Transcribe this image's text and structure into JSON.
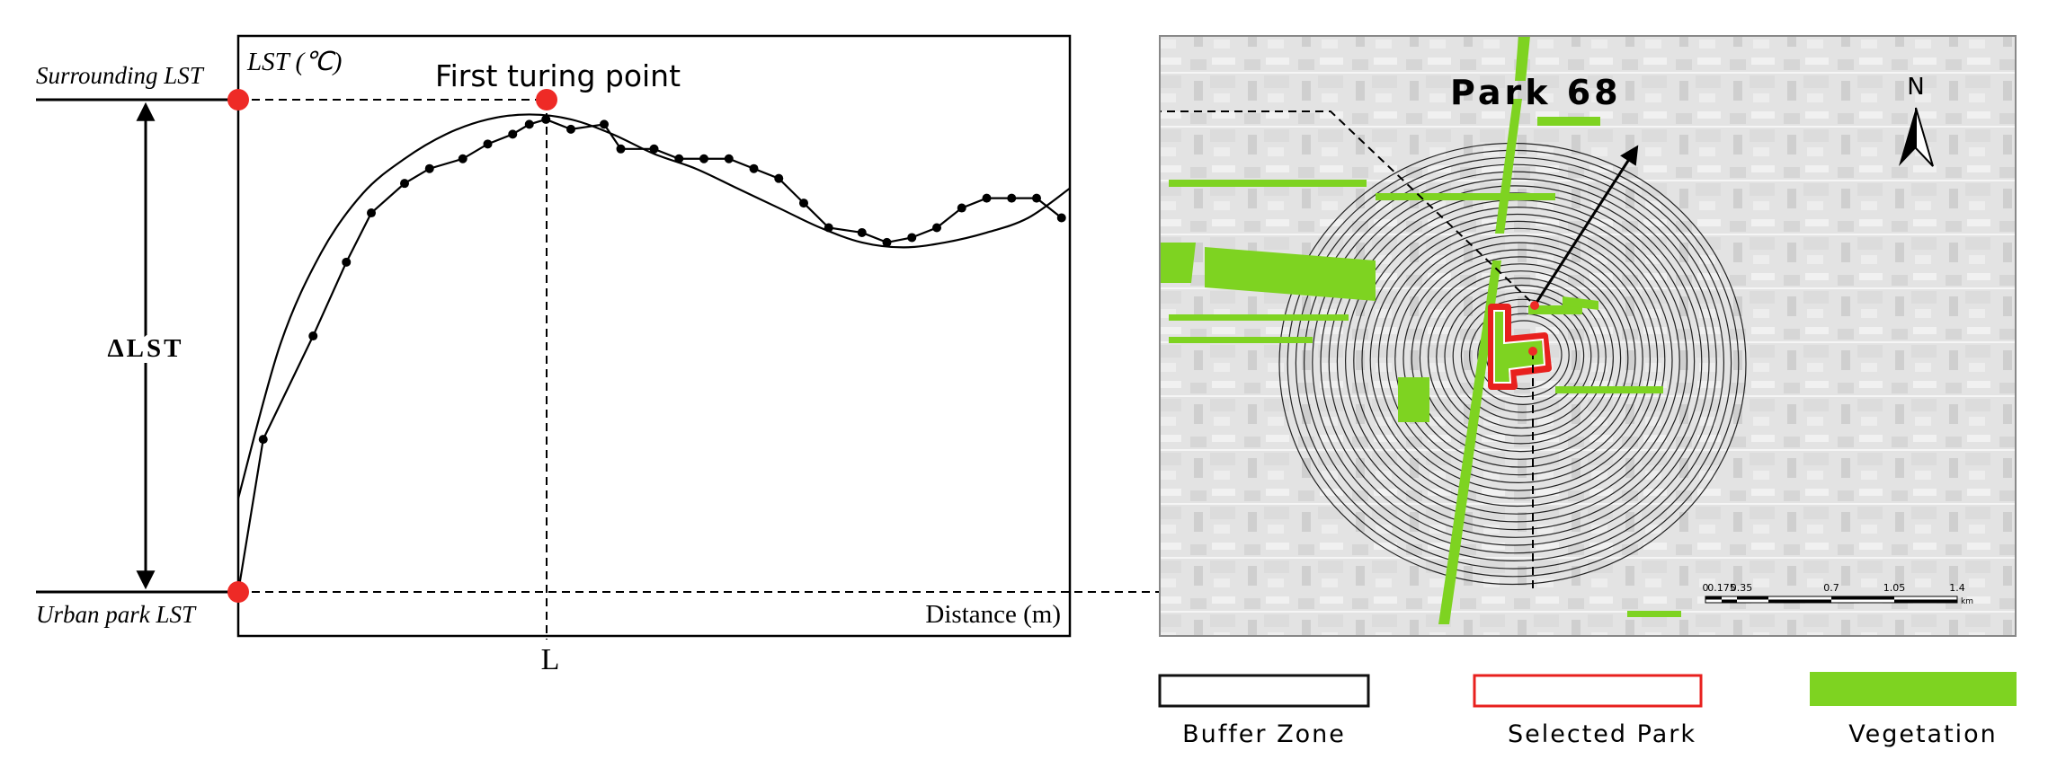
{
  "left_panel": {
    "y_axis_label": "LST (℃)",
    "x_axis_label": "Distance (m)",
    "surrounding_label": "Surrounding LST",
    "urban_label": "Urban park LST",
    "delta_label": "ΔLST",
    "turning_point_label": "First turing point",
    "distance_marker": "L"
  },
  "chart_data": {
    "type": "line",
    "title": "",
    "xlabel": "Distance (m)",
    "ylabel": "LST (℃)",
    "xlim": [
      0,
      100
    ],
    "ylim": [
      0,
      100
    ],
    "turning_point_x": 37,
    "series": [
      {
        "points": [
          [
            0,
            0
          ],
          [
            3,
            31
          ],
          [
            9,
            52
          ],
          [
            13,
            67
          ],
          [
            16,
            77
          ],
          [
            20,
            83
          ],
          [
            23,
            86
          ],
          [
            27,
            88
          ],
          [
            30,
            91
          ],
          [
            33,
            93
          ],
          [
            35,
            95
          ],
          [
            37,
            96
          ],
          [
            40,
            94
          ],
          [
            44,
            95
          ],
          [
            46,
            90
          ],
          [
            50,
            90
          ],
          [
            53,
            88
          ],
          [
            56,
            88
          ],
          [
            59,
            88
          ],
          [
            62,
            86
          ],
          [
            65,
            84
          ],
          [
            68,
            79
          ],
          [
            71,
            74
          ],
          [
            75,
            73
          ],
          [
            78,
            71
          ],
          [
            81,
            72
          ],
          [
            84,
            74
          ],
          [
            87,
            78
          ],
          [
            90,
            80
          ],
          [
            93,
            80
          ],
          [
            96,
            80
          ],
          [
            99,
            76
          ]
        ]
      },
      {
        "points": [
          [
            0,
            19
          ],
          [
            5,
            50
          ],
          [
            10,
            69
          ],
          [
            15,
            81
          ],
          [
            20,
            88
          ],
          [
            25,
            93
          ],
          [
            30,
            96
          ],
          [
            35,
            97
          ],
          [
            40,
            96
          ],
          [
            45,
            93
          ],
          [
            50,
            89
          ],
          [
            55,
            86
          ],
          [
            60,
            82
          ],
          [
            65,
            78
          ],
          [
            70,
            74
          ],
          [
            75,
            71
          ],
          [
            80,
            70
          ],
          [
            85,
            71
          ],
          [
            90,
            73
          ],
          [
            95,
            76
          ],
          [
            100,
            82
          ]
        ]
      }
    ]
  },
  "map_panel": {
    "title": "Park 68",
    "north_label": "N",
    "scale_ticks": [
      "0",
      "0.175",
      "0.35",
      "0.7",
      "1.05",
      "1.4"
    ],
    "scale_unit": "km",
    "vegetation_color": "#7ed321",
    "park_color": "#e8201e",
    "buffer_color": "#222222"
  },
  "legend": [
    {
      "label": "Buffer Zone",
      "stroke": "#111111",
      "fill": "#ffffff"
    },
    {
      "label": "Selected Park",
      "stroke": "#e8201e",
      "fill": "#ffffff"
    },
    {
      "label": "Vegetation",
      "stroke": "#7ed321",
      "fill": "#7ed321"
    }
  ],
  "marker_color": "#ee2a26"
}
